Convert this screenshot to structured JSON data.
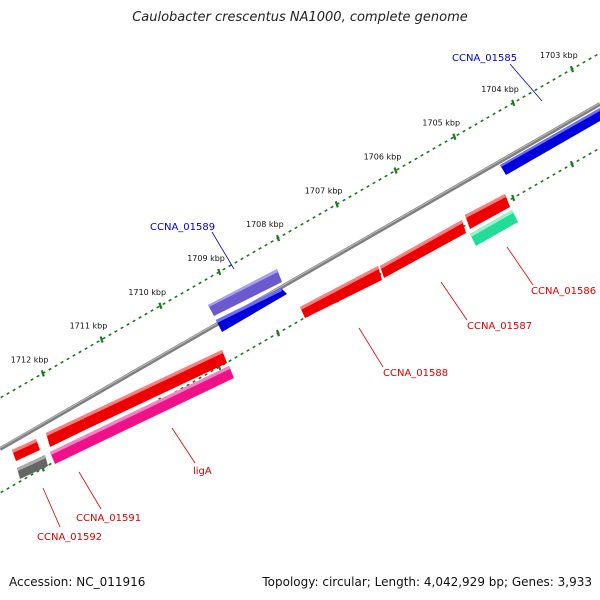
{
  "title": "Caulobacter crescentus NA1000, complete genome",
  "footer": {
    "accession": "Accession: NC_011916",
    "summary": "Topology: circular; Length: 4,042,929 bp; Genes: 3,933"
  },
  "colors": {
    "backbone": "#808080",
    "tick": "#1e7a1e",
    "label_forward": "#0000cc",
    "label_reverse": "#dd0000"
  },
  "kbp_ticks": [
    {
      "label": "1703 kbp",
      "kb": 1703
    },
    {
      "label": "1704 kbp",
      "kb": 1704
    },
    {
      "label": "1705 kbp",
      "kb": 1705
    },
    {
      "label": "1706 kbp",
      "kb": 1706
    },
    {
      "label": "1707 kbp",
      "kb": 1707
    },
    {
      "label": "1708 kbp",
      "kb": 1708
    },
    {
      "label": "1709 kbp",
      "kb": 1709
    },
    {
      "label": "1710 kbp",
      "kb": 1710
    },
    {
      "label": "1711 kbp",
      "kb": 1711
    },
    {
      "label": "1712 kbp",
      "kb": 1712
    }
  ],
  "genes": [
    {
      "name": "CCNA_01585",
      "strand": "forward",
      "color": "#0000dd"
    },
    {
      "name": "CCNA_01589",
      "strand": "forward",
      "color": "#6a5acd"
    },
    {
      "name": "CCNA_01586",
      "strand": "reverse",
      "color": "#22dd99"
    },
    {
      "name": "CCNA_01587",
      "strand": "reverse",
      "color": "#ee0000"
    },
    {
      "name": "CCNA_01588",
      "strand": "reverse",
      "color": "#ee0000"
    },
    {
      "name": "ligA",
      "strand": "reverse",
      "color": "#ee1188"
    },
    {
      "name": "CCNA_01591",
      "strand": "reverse",
      "color": "#ee0000"
    },
    {
      "name": "CCNA_01592",
      "strand": "reverse",
      "color": "#666666"
    }
  ]
}
